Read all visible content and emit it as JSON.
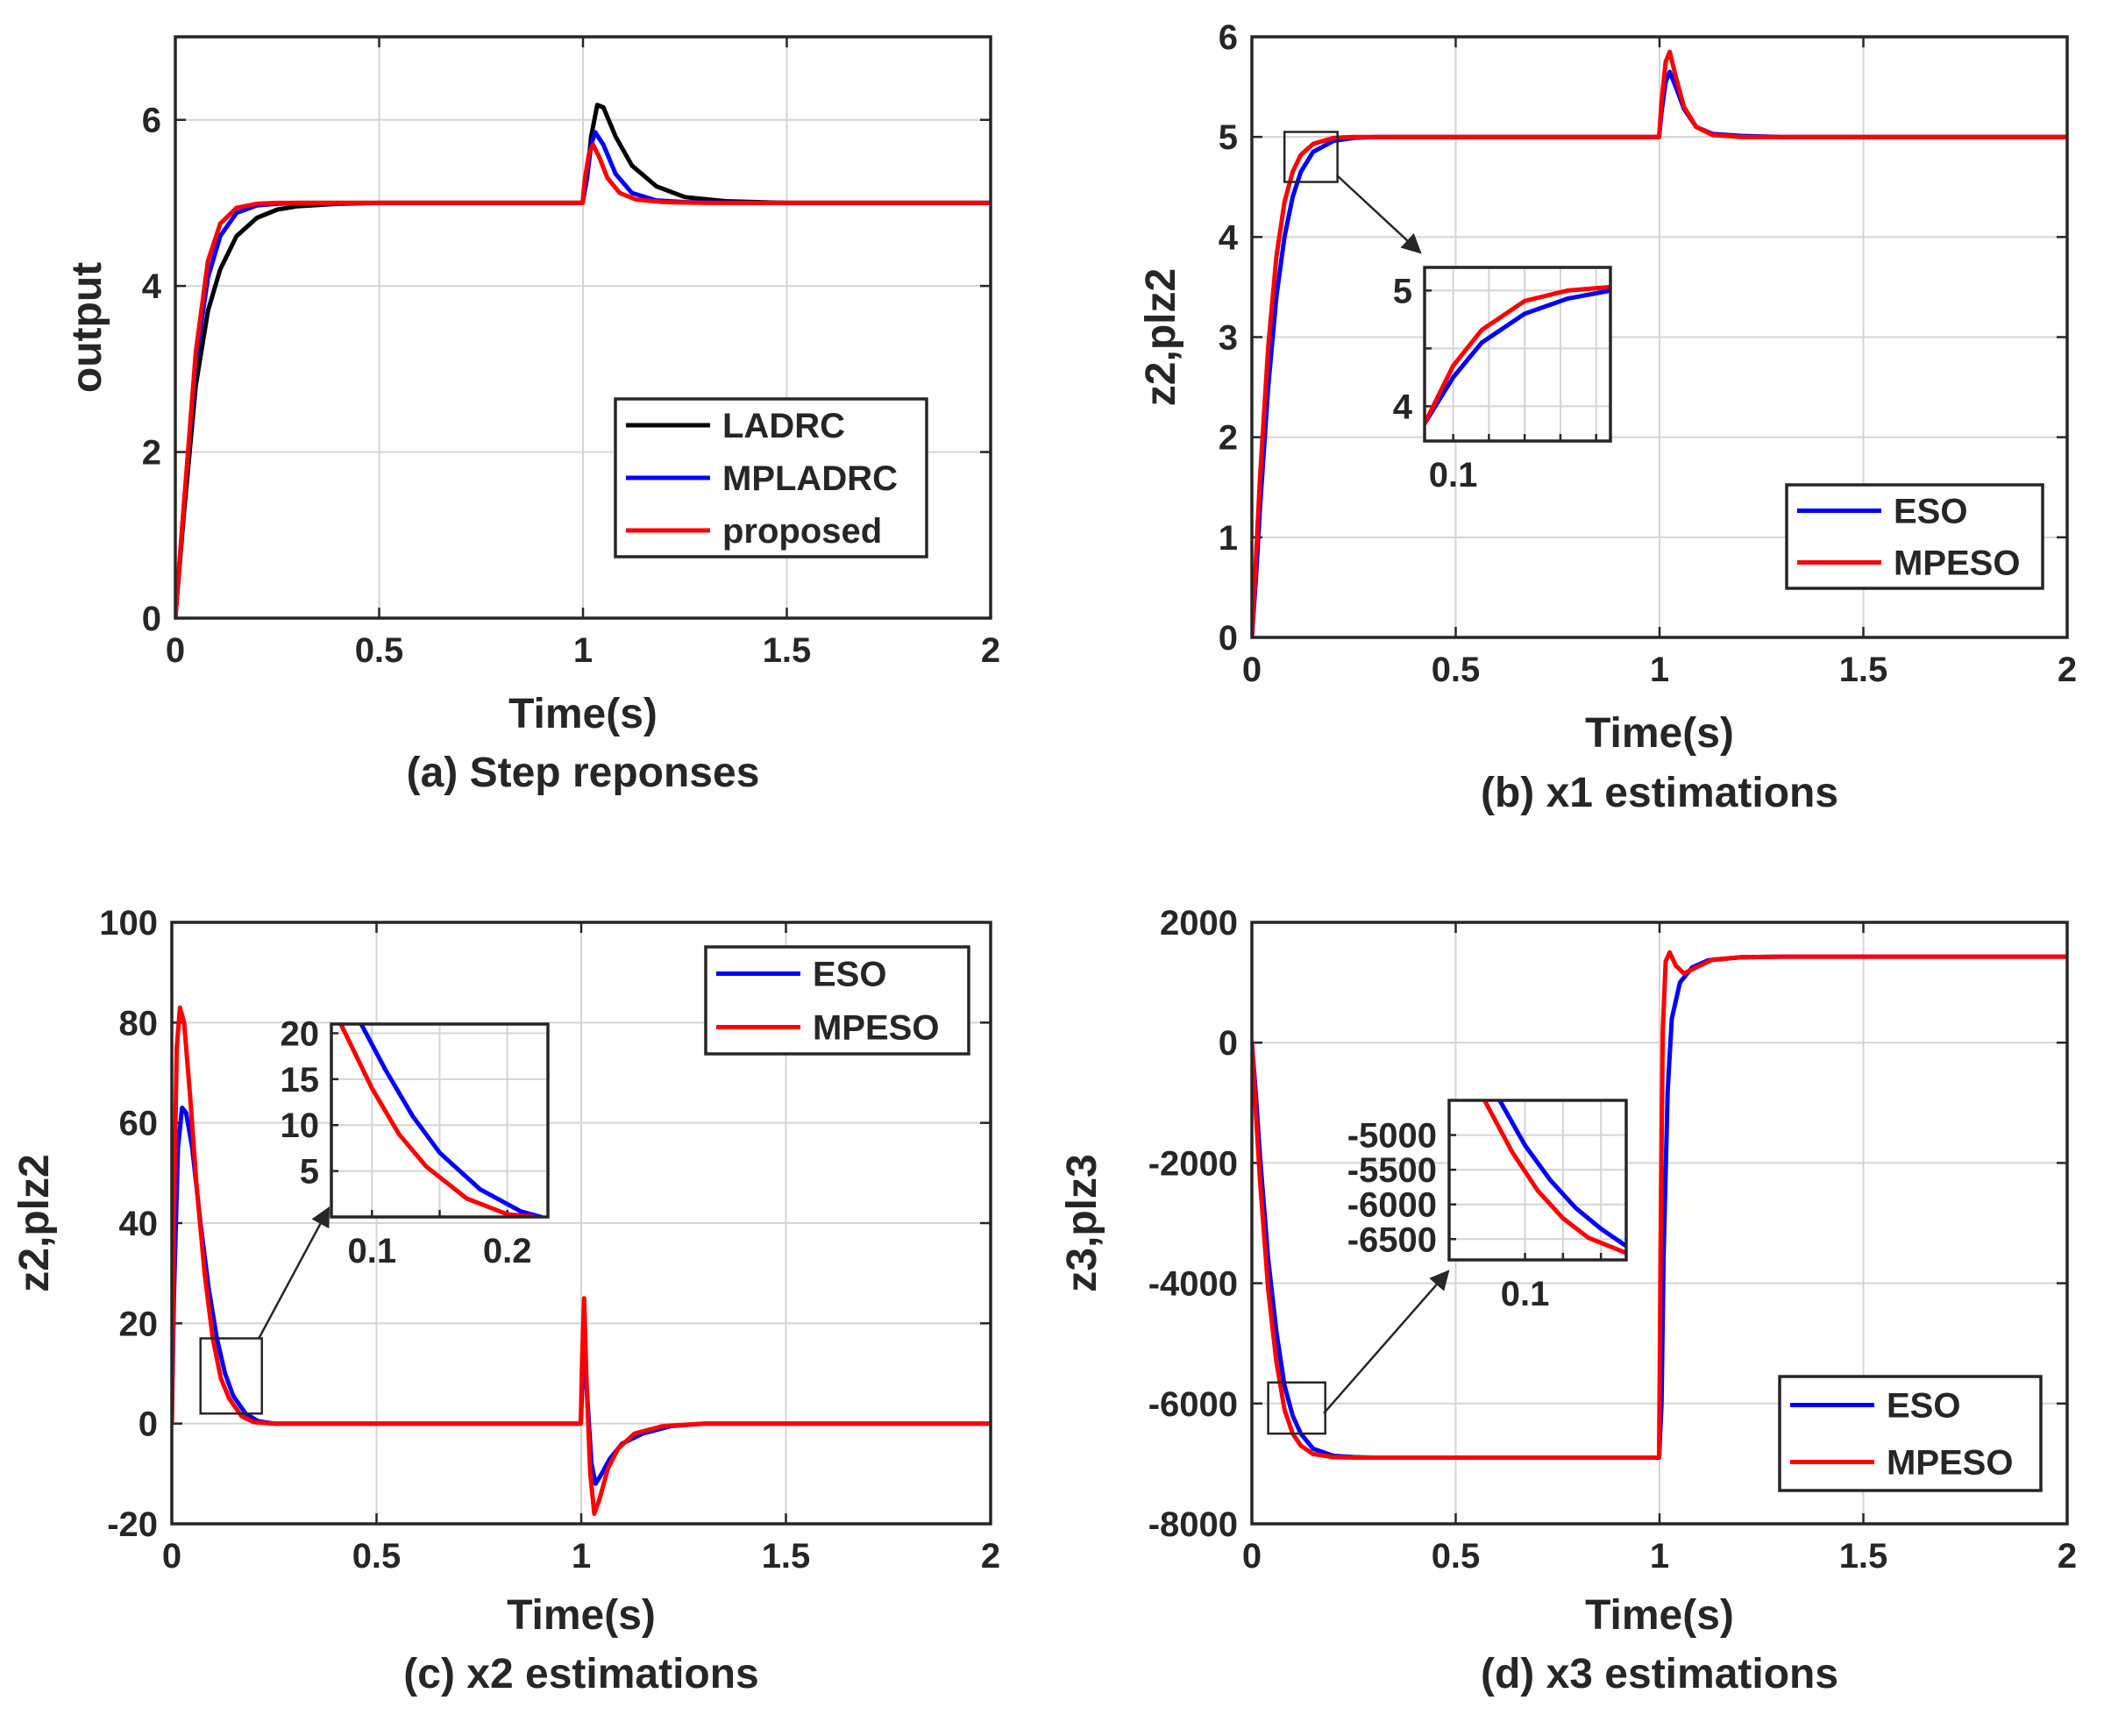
{
  "colors": {
    "LADRC": "#000000",
    "MPLADRC": "#0000ff",
    "proposed": "#ff0000",
    "ESO": "#0000ff",
    "MPESO": "#ff0000"
  },
  "chart_data": [
    {
      "id": "a",
      "type": "line",
      "caption": "(a) Step reponses",
      "xlabel": "Time(s)",
      "ylabel": "output",
      "xlim": [
        0,
        2
      ],
      "ylim": [
        0,
        7
      ],
      "xticks": [
        0,
        0.5,
        1,
        1.5,
        2
      ],
      "xtick_labels": [
        "0",
        "0.5",
        "1",
        "1.5",
        "2"
      ],
      "yticks": [
        0,
        2,
        4,
        6
      ],
      "ytick_labels": [
        "0",
        "2",
        "4",
        "6"
      ],
      "legend": {
        "position": "lower-right",
        "entries": [
          "LADRC",
          "MPLADRC",
          "proposed"
        ]
      },
      "series": [
        {
          "name": "LADRC",
          "x": [
            0,
            0.02,
            0.05,
            0.08,
            0.11,
            0.15,
            0.2,
            0.25,
            0.3,
            0.4,
            0.5,
            0.999,
            1.01,
            1.02,
            1.035,
            1.05,
            1.08,
            1.12,
            1.18,
            1.25,
            1.35,
            1.5,
            2
          ],
          "y": [
            0,
            1.2,
            2.8,
            3.7,
            4.2,
            4.6,
            4.82,
            4.92,
            4.96,
            4.99,
            5,
            5,
            5.3,
            5.8,
            6.18,
            6.15,
            5.8,
            5.45,
            5.2,
            5.07,
            5.02,
            5,
            5
          ]
        },
        {
          "name": "MPLADRC",
          "x": [
            0,
            0.02,
            0.05,
            0.08,
            0.11,
            0.15,
            0.2,
            0.25,
            0.3,
            0.4,
            0.5,
            0.999,
            1.01,
            1.02,
            1.03,
            1.05,
            1.08,
            1.12,
            1.18,
            1.25,
            1.4,
            2
          ],
          "y": [
            0,
            1.3,
            3.1,
            4.1,
            4.6,
            4.88,
            4.97,
            4.99,
            5,
            5,
            5,
            5,
            5.3,
            5.7,
            5.85,
            5.7,
            5.35,
            5.12,
            5.03,
            5.01,
            5,
            5
          ]
        },
        {
          "name": "proposed",
          "x": [
            0,
            0.02,
            0.05,
            0.08,
            0.11,
            0.15,
            0.2,
            0.25,
            0.3,
            0.4,
            0.5,
            0.999,
            1.005,
            1.015,
            1.025,
            1.04,
            1.06,
            1.09,
            1.13,
            1.2,
            1.3,
            2
          ],
          "y": [
            0,
            1.3,
            3.2,
            4.3,
            4.75,
            4.94,
            4.99,
            5,
            5,
            5,
            5,
            5,
            5.3,
            5.6,
            5.7,
            5.55,
            5.3,
            5.12,
            5.04,
            5.01,
            5,
            5
          ]
        }
      ],
      "inset": null
    },
    {
      "id": "b",
      "type": "line",
      "caption": "(b) x1 estimations",
      "xlabel": "Time(s)",
      "ylabel": "z2,plz2",
      "xlim": [
        0,
        2
      ],
      "ylim": [
        0,
        6
      ],
      "xticks": [
        0,
        0.5,
        1,
        1.5,
        2
      ],
      "xtick_labels": [
        "0",
        "0.5",
        "1",
        "1.5",
        "2"
      ],
      "yticks": [
        0,
        1,
        2,
        3,
        4,
        5,
        6
      ],
      "ytick_labels": [
        "0",
        "1",
        "2",
        "3",
        "4",
        "5",
        "6"
      ],
      "legend": {
        "position": "lower-right",
        "entries": [
          "ESO",
          "MPESO"
        ]
      },
      "series": [
        {
          "name": "ESO",
          "x": [
            0,
            0.01,
            0.02,
            0.04,
            0.06,
            0.08,
            0.1,
            0.12,
            0.15,
            0.2,
            0.25,
            0.3,
            0.5,
            0.999,
            1.005,
            1.015,
            1.025,
            1.04,
            1.06,
            1.09,
            1.13,
            1.2,
            1.3,
            2
          ],
          "y": [
            0,
            0.6,
            1.3,
            2.5,
            3.4,
            4.0,
            4.4,
            4.65,
            4.85,
            4.96,
            4.99,
            5,
            5,
            5,
            5.25,
            5.55,
            5.65,
            5.5,
            5.28,
            5.1,
            5.03,
            5.01,
            5,
            5
          ]
        },
        {
          "name": "MPESO",
          "x": [
            0,
            0.01,
            0.02,
            0.04,
            0.06,
            0.08,
            0.1,
            0.12,
            0.15,
            0.2,
            0.25,
            0.3,
            0.5,
            0.999,
            1.005,
            1.015,
            1.025,
            1.04,
            1.06,
            1.09,
            1.13,
            1.2,
            1.3,
            2
          ],
          "y": [
            0,
            0.8,
            1.6,
            2.9,
            3.8,
            4.35,
            4.65,
            4.82,
            4.93,
            4.99,
            5,
            5,
            5,
            5,
            5.35,
            5.75,
            5.85,
            5.6,
            5.3,
            5.1,
            5.02,
            5,
            5,
            5
          ]
        }
      ],
      "zoom_box": {
        "xlim": [
          0.08,
          0.21
        ],
        "ylim": [
          4.55,
          5.05
        ]
      },
      "inset": {
        "xlim": [
          0.08,
          0.21
        ],
        "ylim": [
          3.7,
          5.2
        ],
        "xticks": [
          0.1
        ],
        "xtick_labels": [
          "0.1"
        ],
        "yticks": [
          4,
          5
        ],
        "ytick_labels": [
          "4",
          "5"
        ],
        "grid_x": [
          0.1,
          0.125,
          0.15,
          0.175,
          0.2
        ],
        "grid_y": [
          4,
          4.5,
          5
        ],
        "series": [
          {
            "name": "ESO",
            "x": [
              0.08,
              0.1,
              0.12,
              0.15,
              0.18,
              0.21
            ],
            "y": [
              3.85,
              4.25,
              4.55,
              4.8,
              4.93,
              5.0
            ]
          },
          {
            "name": "MPESO",
            "x": [
              0.08,
              0.1,
              0.12,
              0.15,
              0.18,
              0.21
            ],
            "y": [
              3.85,
              4.35,
              4.66,
              4.91,
              5.0,
              5.03
            ]
          }
        ]
      }
    },
    {
      "id": "c",
      "type": "line",
      "caption": "(c) x2 estimations",
      "xlabel": "Time(s)",
      "ylabel": "z2,plz2",
      "xlim": [
        0,
        2
      ],
      "ylim": [
        -20,
        100
      ],
      "xticks": [
        0,
        0.5,
        1,
        1.5,
        2
      ],
      "xtick_labels": [
        "0",
        "0.5",
        "1",
        "1.5",
        "2"
      ],
      "yticks": [
        -20,
        0,
        20,
        40,
        60,
        80,
        100
      ],
      "ytick_labels": [
        "-20",
        "0",
        "20",
        "40",
        "60",
        "80",
        "100"
      ],
      "legend": {
        "position": "top-right",
        "entries": [
          "ESO",
          "MPESO"
        ]
      },
      "series": [
        {
          "name": "ESO",
          "x": [
            0,
            0.005,
            0.015,
            0.025,
            0.035,
            0.05,
            0.07,
            0.09,
            0.11,
            0.13,
            0.15,
            0.18,
            0.21,
            0.25,
            0.3,
            0.4,
            0.999,
            1.003,
            1.008,
            1.015,
            1.025,
            1.035,
            1.05,
            1.07,
            1.1,
            1.15,
            1.22,
            1.3,
            1.4,
            2
          ],
          "y": [
            0,
            25,
            55,
            63,
            62,
            55,
            40,
            27,
            17,
            10,
            5.5,
            2,
            0.5,
            0,
            0,
            0,
            0,
            8,
            15,
            5,
            -8,
            -12,
            -10,
            -7,
            -4,
            -2,
            -0.5,
            0,
            0,
            0
          ]
        },
        {
          "name": "MPESO",
          "x": [
            0,
            0.005,
            0.012,
            0.02,
            0.03,
            0.045,
            0.06,
            0.08,
            0.1,
            0.12,
            0.14,
            0.17,
            0.2,
            0.25,
            0.3,
            0.4,
            0.999,
            1.002,
            1.007,
            1.013,
            1.022,
            1.032,
            1.045,
            1.065,
            1.09,
            1.13,
            1.2,
            1.3,
            2
          ],
          "y": [
            0,
            40,
            75,
            83,
            80,
            65,
            48,
            30,
            17,
            9,
            5,
            1.5,
            0.3,
            0,
            0,
            0,
            0,
            12,
            25,
            8,
            -10,
            -18,
            -15,
            -9,
            -5,
            -2,
            -0.5,
            0,
            0
          ]
        }
      ],
      "zoom_box": {
        "xlim": [
          0.07,
          0.22
        ],
        "ylim": [
          2,
          17
        ]
      },
      "inset": {
        "xlim": [
          0.07,
          0.23
        ],
        "ylim": [
          0,
          21
        ],
        "xticks": [
          0.1,
          0.2
        ],
        "xtick_labels": [
          "0.1",
          "0.2"
        ],
        "yticks": [
          5,
          10,
          15,
          20
        ],
        "ytick_labels": [
          "5",
          "10",
          "15",
          "20"
        ],
        "grid_x": [
          0.1,
          0.15,
          0.2
        ],
        "grid_y": [
          5,
          10,
          15,
          20
        ],
        "series": [
          {
            "name": "ESO",
            "x": [
              0.092,
              0.11,
              0.13,
              0.15,
              0.18,
              0.21,
              0.225
            ],
            "y": [
              21,
              16,
              11,
              7,
              3,
              0.6,
              0
            ]
          },
          {
            "name": "MPESO",
            "x": [
              0.077,
              0.1,
              0.12,
              0.14,
              0.17,
              0.2,
              0.22
            ],
            "y": [
              21,
              14,
              9,
              5.5,
              2,
              0.3,
              0
            ]
          }
        ]
      }
    },
    {
      "id": "d",
      "type": "line",
      "caption": "(d) x3 estimations",
      "xlabel": "Time(s)",
      "ylabel": "z3,plz3",
      "xlim": [
        0,
        2
      ],
      "ylim": [
        -8000,
        2000
      ],
      "xticks": [
        0,
        0.5,
        1,
        1.5,
        2
      ],
      "xtick_labels": [
        "0",
        "0.5",
        "1",
        "1.5",
        "2"
      ],
      "yticks": [
        -8000,
        -6000,
        -4000,
        -2000,
        0,
        2000
      ],
      "ytick_labels": [
        "-8000",
        "-6000",
        "-4000",
        "-2000",
        "0",
        "2000"
      ],
      "legend": {
        "position": "lower-right",
        "entries": [
          "ESO",
          "MPESO"
        ]
      },
      "series": [
        {
          "name": "ESO",
          "x": [
            0,
            0.01,
            0.02,
            0.04,
            0.06,
            0.08,
            0.1,
            0.12,
            0.15,
            0.2,
            0.25,
            0.3,
            0.999,
            1.005,
            1.01,
            1.02,
            1.03,
            1.05,
            1.08,
            1.12,
            1.2,
            1.3,
            2
          ],
          "y": [
            0,
            -900,
            -1900,
            -3600,
            -4800,
            -5700,
            -6200,
            -6500,
            -6750,
            -6870,
            -6890,
            -6900,
            -6900,
            -6000,
            -3500,
            -800,
            400,
            1000,
            1250,
            1370,
            1420,
            1430,
            1430
          ]
        },
        {
          "name": "MPESO",
          "x": [
            0,
            0.01,
            0.02,
            0.04,
            0.06,
            0.08,
            0.1,
            0.12,
            0.15,
            0.2,
            0.25,
            0.3,
            0.999,
            1.003,
            1.008,
            1.015,
            1.025,
            1.04,
            1.06,
            1.09,
            1.13,
            1.2,
            1.3,
            2
          ],
          "y": [
            0,
            -1200,
            -2300,
            -4100,
            -5300,
            -6100,
            -6500,
            -6700,
            -6840,
            -6890,
            -6900,
            -6900,
            -6900,
            -3000,
            200,
            1350,
            1500,
            1280,
            1150,
            1250,
            1380,
            1420,
            1430,
            1430
          ]
        }
      ],
      "zoom_box": {
        "xlim": [
          0.04,
          0.18
        ],
        "ylim": [
          -6500,
          -5650
        ]
      },
      "inset": {
        "xlim": [
          0.04,
          0.18
        ],
        "ylim": [
          -6800,
          -4500
        ],
        "xticks": [
          0.1
        ],
        "xtick_labels": [
          "0.1"
        ],
        "yticks": [
          -5000,
          -5500,
          -6000,
          -6500
        ],
        "ytick_labels": [
          "-5000",
          "-5500",
          "-6000",
          "-6500"
        ],
        "grid_x": [
          0.1,
          0.13,
          0.16
        ],
        "grid_y": [
          -5000,
          -5500,
          -6000,
          -6500
        ],
        "series": [
          {
            "name": "ESO",
            "x": [
              0.08,
              0.1,
              0.12,
              0.14,
              0.16,
              0.18
            ],
            "y": [
              -4500,
              -5150,
              -5650,
              -6050,
              -6350,
              -6600
            ]
          },
          {
            "name": "MPESO",
            "x": [
              0.068,
              0.09,
              0.11,
              0.13,
              0.15,
              0.18
            ],
            "y": [
              -4500,
              -5250,
              -5800,
              -6200,
              -6480,
              -6700
            ]
          }
        ]
      }
    }
  ]
}
